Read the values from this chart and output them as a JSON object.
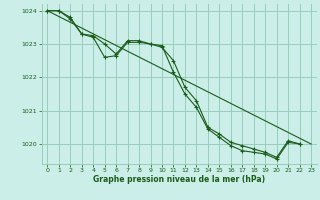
{
  "bg_color": "#cceee8",
  "grid_color": "#99ccbb",
  "line_color": "#1a5c1a",
  "xlabel": "Graphe pression niveau de la mer (hPa)",
  "xlabel_color": "#1a5c1a",
  "ylim": [
    1019.4,
    1024.2
  ],
  "xlim": [
    -0.5,
    23.5
  ],
  "yticks": [
    1020,
    1021,
    1022,
    1023,
    1024
  ],
  "xticks": [
    0,
    1,
    2,
    3,
    4,
    5,
    6,
    7,
    8,
    9,
    10,
    11,
    12,
    13,
    14,
    15,
    16,
    17,
    18,
    19,
    20,
    21,
    22,
    23
  ],
  "line1_x": [
    0,
    1,
    2,
    3,
    4,
    5,
    6,
    7,
    8,
    9,
    10,
    11,
    12,
    13,
    14,
    15,
    16,
    17,
    18,
    19,
    20,
    21,
    22
  ],
  "line1_y": [
    1024.0,
    1024.0,
    1023.75,
    1023.3,
    1023.25,
    1023.0,
    1022.7,
    1023.1,
    1023.1,
    1023.0,
    1022.95,
    1022.15,
    1021.5,
    1021.1,
    1020.45,
    1020.2,
    1019.95,
    1019.8,
    1019.75,
    1019.7,
    1019.55,
    1020.05,
    1020.0
  ],
  "line2_x": [
    0,
    1,
    2,
    3,
    4,
    5,
    6,
    7,
    8,
    9,
    10,
    11,
    12,
    13,
    14,
    15,
    16,
    17,
    18,
    19,
    20,
    21,
    22
  ],
  "line2_y": [
    1024.0,
    1024.0,
    1023.8,
    1023.3,
    1023.2,
    1022.6,
    1022.65,
    1023.05,
    1023.05,
    1023.0,
    1022.9,
    1022.5,
    1021.7,
    1021.3,
    1020.5,
    1020.3,
    1020.05,
    1019.95,
    1019.85,
    1019.75,
    1019.6,
    1020.1,
    1020.0
  ],
  "line3_x": [
    0,
    23
  ],
  "line3_y": [
    1024.0,
    1020.0
  ]
}
